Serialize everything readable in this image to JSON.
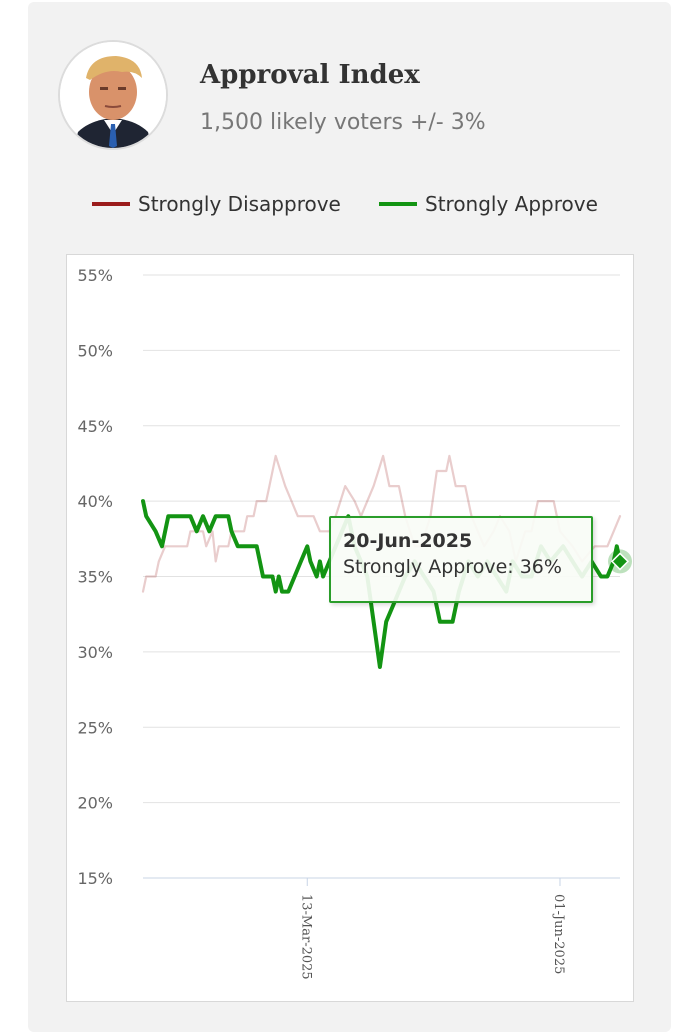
{
  "header": {
    "title": "Approval Index",
    "subtitle": "1,500 likely voters +/- 3%",
    "avatar_icon": "person-portrait-icon"
  },
  "legend": [
    {
      "label": "Strongly Disapprove",
      "color": "#9b1c1c"
    },
    {
      "label": "Strongly Approve",
      "color": "#139413"
    }
  ],
  "tooltip": {
    "date": "20-Jun-2025",
    "text": "Strongly Approve: 36%"
  },
  "chart_data": {
    "type": "line",
    "title": "",
    "xlabel": "",
    "ylabel": "",
    "x_start": "2025-01-20",
    "x_end": "2025-06-20",
    "x_ticks": [
      {
        "date": "2025-03-13",
        "label": "13-Mar-2025"
      },
      {
        "date": "2025-06-01",
        "label": "01-Jun-2025"
      }
    ],
    "y_ticks": [
      15,
      20,
      25,
      30,
      35,
      40,
      45,
      50,
      55
    ],
    "y_tick_labels": [
      "15%",
      "20%",
      "25%",
      "30%",
      "35%",
      "40%",
      "45%",
      "50%",
      "55%"
    ],
    "ylim": [
      15,
      55
    ],
    "grid": true,
    "legend_position": "top",
    "highlight": {
      "series": "Strongly Approve",
      "date": "2025-06-20",
      "value": 36
    },
    "series": [
      {
        "name": "Strongly Disapprove",
        "color": "#9b1c1c",
        "points": [
          [
            "2025-01-20",
            34
          ],
          [
            "2025-01-21",
            35
          ],
          [
            "2025-01-24",
            35
          ],
          [
            "2025-01-25",
            36
          ],
          [
            "2025-01-27",
            37
          ],
          [
            "2025-02-03",
            37
          ],
          [
            "2025-02-04",
            38
          ],
          [
            "2025-02-08",
            38
          ],
          [
            "2025-02-09",
            37
          ],
          [
            "2025-02-11",
            38
          ],
          [
            "2025-02-12",
            36
          ],
          [
            "2025-02-13",
            37
          ],
          [
            "2025-02-16",
            37
          ],
          [
            "2025-02-17",
            38
          ],
          [
            "2025-02-21",
            38
          ],
          [
            "2025-02-22",
            39
          ],
          [
            "2025-02-24",
            39
          ],
          [
            "2025-02-25",
            40
          ],
          [
            "2025-02-28",
            40
          ],
          [
            "2025-03-01",
            41
          ],
          [
            "2025-03-03",
            43
          ],
          [
            "2025-03-06",
            41
          ],
          [
            "2025-03-08",
            40
          ],
          [
            "2025-03-10",
            39
          ],
          [
            "2025-03-13",
            39
          ],
          [
            "2025-03-15",
            39
          ],
          [
            "2025-03-17",
            38
          ],
          [
            "2025-03-20",
            38
          ],
          [
            "2025-03-22",
            39
          ],
          [
            "2025-03-25",
            41
          ],
          [
            "2025-03-28",
            40
          ],
          [
            "2025-03-30",
            39
          ],
          [
            "2025-04-01",
            40
          ],
          [
            "2025-04-03",
            41
          ],
          [
            "2025-04-06",
            43
          ],
          [
            "2025-04-08",
            41
          ],
          [
            "2025-04-11",
            41
          ],
          [
            "2025-04-13",
            39
          ],
          [
            "2025-04-16",
            37
          ],
          [
            "2025-04-18",
            37
          ],
          [
            "2025-04-21",
            39
          ],
          [
            "2025-04-23",
            42
          ],
          [
            "2025-04-26",
            42
          ],
          [
            "2025-04-27",
            43
          ],
          [
            "2025-04-29",
            41
          ],
          [
            "2025-05-02",
            41
          ],
          [
            "2025-05-04",
            39
          ],
          [
            "2025-05-06",
            38
          ],
          [
            "2025-05-08",
            37
          ],
          [
            "2025-05-11",
            38
          ],
          [
            "2025-05-13",
            39
          ],
          [
            "2025-05-16",
            38
          ],
          [
            "2025-05-18",
            36
          ],
          [
            "2025-05-21",
            38
          ],
          [
            "2025-05-23",
            38
          ],
          [
            "2025-05-25",
            40
          ],
          [
            "2025-05-30",
            40
          ],
          [
            "2025-06-01",
            38
          ],
          [
            "2025-06-05",
            37
          ],
          [
            "2025-06-08",
            36
          ],
          [
            "2025-06-12",
            37
          ],
          [
            "2025-06-16",
            37
          ],
          [
            "2025-06-18",
            38
          ],
          [
            "2025-06-20",
            39
          ]
        ]
      },
      {
        "name": "Strongly Approve",
        "color": "#139413",
        "points": [
          [
            "2025-01-20",
            40
          ],
          [
            "2025-01-21",
            39
          ],
          [
            "2025-01-24",
            38
          ],
          [
            "2025-01-26",
            37
          ],
          [
            "2025-01-28",
            39
          ],
          [
            "2025-02-01",
            39
          ],
          [
            "2025-02-04",
            39
          ],
          [
            "2025-02-06",
            38
          ],
          [
            "2025-02-08",
            39
          ],
          [
            "2025-02-10",
            38
          ],
          [
            "2025-02-12",
            39
          ],
          [
            "2025-02-16",
            39
          ],
          [
            "2025-02-17",
            38
          ],
          [
            "2025-02-19",
            37
          ],
          [
            "2025-02-25",
            37
          ],
          [
            "2025-02-27",
            35
          ],
          [
            "2025-03-02",
            35
          ],
          [
            "2025-03-03",
            34
          ],
          [
            "2025-03-04",
            35
          ],
          [
            "2025-03-05",
            34
          ],
          [
            "2025-03-07",
            34
          ],
          [
            "2025-03-09",
            35
          ],
          [
            "2025-03-11",
            36
          ],
          [
            "2025-03-13",
            37
          ],
          [
            "2025-03-14",
            36
          ],
          [
            "2025-03-16",
            35
          ],
          [
            "2025-03-17",
            36
          ],
          [
            "2025-03-18",
            35
          ],
          [
            "2025-03-20",
            36
          ],
          [
            "2025-03-22",
            37
          ],
          [
            "2025-03-24",
            38
          ],
          [
            "2025-03-26",
            39
          ],
          [
            "2025-03-28",
            37
          ],
          [
            "2025-04-01",
            35
          ],
          [
            "2025-04-03",
            32
          ],
          [
            "2025-04-05",
            29
          ],
          [
            "2025-04-07",
            32
          ],
          [
            "2025-04-09",
            33
          ],
          [
            "2025-04-13",
            35
          ],
          [
            "2025-04-16",
            36
          ],
          [
            "2025-04-19",
            35
          ],
          [
            "2025-04-22",
            34
          ],
          [
            "2025-04-24",
            32
          ],
          [
            "2025-04-28",
            32
          ],
          [
            "2025-04-30",
            34
          ],
          [
            "2025-05-03",
            36
          ],
          [
            "2025-05-06",
            35
          ],
          [
            "2025-05-09",
            36
          ],
          [
            "2025-05-12",
            35
          ],
          [
            "2025-05-15",
            34
          ],
          [
            "2025-05-17",
            36
          ],
          [
            "2025-05-20",
            35
          ],
          [
            "2025-05-23",
            35
          ],
          [
            "2025-05-26",
            37
          ],
          [
            "2025-05-29",
            36
          ],
          [
            "2025-06-02",
            37
          ],
          [
            "2025-06-05",
            36
          ],
          [
            "2025-06-08",
            35
          ],
          [
            "2025-06-11",
            36
          ],
          [
            "2025-06-14",
            35
          ],
          [
            "2025-06-16",
            35
          ],
          [
            "2025-06-18",
            36
          ],
          [
            "2025-06-19",
            37
          ],
          [
            "2025-06-20",
            36
          ]
        ]
      }
    ]
  }
}
